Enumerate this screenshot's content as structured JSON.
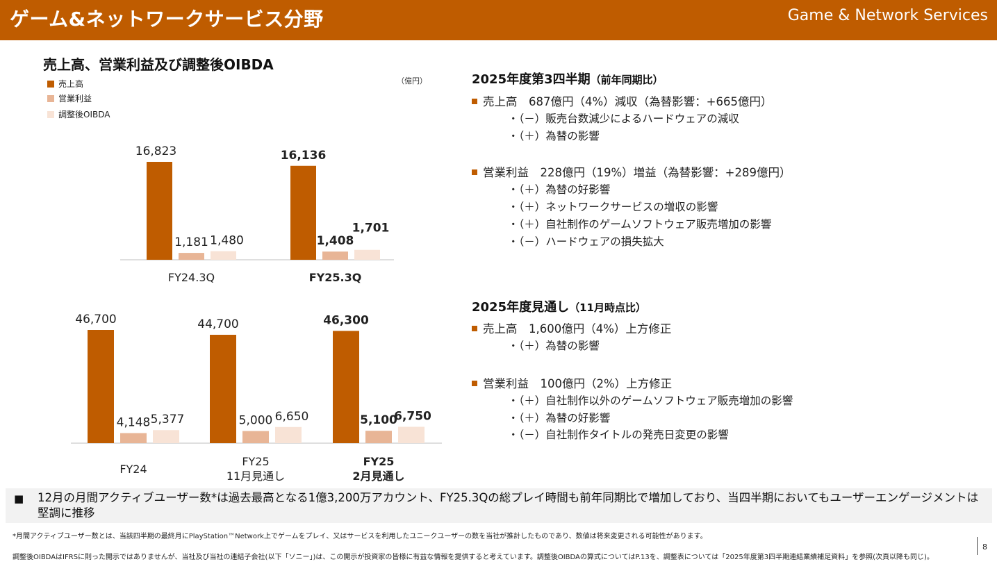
{
  "header": {
    "title": "ゲーム&ネットワークサービス分野",
    "title_en": "Game & Network Services"
  },
  "chart_section": {
    "title": "売上高、営業利益及び調整後OIBDA",
    "unit": "（億円）",
    "legend": [
      {
        "label": "売上高",
        "color": "#bf5c00"
      },
      {
        "label": "営業利益",
        "color": "#e8b596"
      },
      {
        "label": "調整後OIBDA",
        "color": "#f8e3d6"
      }
    ]
  },
  "chart_data": [
    {
      "type": "bar",
      "title": "売上高、営業利益及び調整後OIBDA",
      "unit": "億円",
      "categories": [
        "FY24.3Q",
        "FY25.3Q"
      ],
      "series": [
        {
          "name": "売上高",
          "values": [
            16823,
            16136
          ]
        },
        {
          "name": "営業利益",
          "values": [
            1181,
            1408
          ]
        },
        {
          "name": "調整後OIBDA",
          "values": [
            1480,
            1701
          ]
        }
      ],
      "data_labels": [
        [
          "16,823",
          "1,181",
          "1,480"
        ],
        [
          "16,136",
          "1,408",
          "1,701"
        ]
      ],
      "highlight_category": 1
    },
    {
      "type": "bar",
      "unit": "億円",
      "categories": [
        [
          "FY24"
        ],
        [
          "FY25",
          "11月見通し"
        ],
        [
          "FY25",
          "2月見通し"
        ]
      ],
      "series": [
        {
          "name": "売上高",
          "values": [
            46700,
            44700,
            46300
          ]
        },
        {
          "name": "営業利益",
          "values": [
            4148,
            5000,
            5100
          ]
        },
        {
          "name": "調整後OIBDA",
          "values": [
            5377,
            6650,
            6750
          ]
        }
      ],
      "data_labels": [
        [
          "46,700",
          "4,148",
          "5,377"
        ],
        [
          "44,700",
          "5,000",
          "6,650"
        ],
        [
          "46,300",
          "5,100",
          "6,750"
        ]
      ],
      "highlight_category": 2
    }
  ],
  "q3": {
    "title": "2025年度第3四半期",
    "title_sub": "（前年同期比）",
    "sales": "売上高　687億円（4%）減収（為替影響：+665億円）",
    "sales_items": [
      "・（－）販売台数減少によるハードウェアの減収",
      "・（＋）為替の影響"
    ],
    "op": "営業利益　228億円（19%）増益（為替影響：+289億円）",
    "op_items": [
      "・（＋）為替の好影響",
      "・（＋）ネットワークサービスの増収の影響",
      "・（＋）自社制作のゲームソフトウェア販売増加の影響",
      "・（－）ハードウェアの損失拡大"
    ]
  },
  "outlook": {
    "title": "2025年度見通し",
    "title_sub": "（11月時点比）",
    "sales": "売上高　1,600億円（4%）上方修正",
    "sales_items": [
      "・（＋）為替の影響"
    ],
    "op": "営業利益　100億円（2%）上方修正",
    "op_items": [
      "・（＋）自社制作以外のゲームソフトウェア販売増加の影響",
      "・（＋）為替の好影響",
      "・（－）自社制作タイトルの発売日変更の影響"
    ]
  },
  "banner": {
    "bullet": "■",
    "text": "12月の月間アクティブユーザー数*は過去最高となる1億3,200万アカウント、FY25.3Qの総プレイ時間も前年同期比で増加しており、当四半期においてもユーザーエンゲージメントは堅調に推移"
  },
  "footnotes": {
    "note1": "*月間アクティブユーザー数とは、当該四半期の最終月にPlayStation™Network上でゲームをプレイ、又はサービスを利用したユニークユーザーの数を当社が推計したものであり、数値は将来変更される可能性があります。",
    "note2": "調整後OIBDAはIFRSに則った開示ではありませんが、当社及び当社の連結子会社(以下「ソニー」)は、この開示が投資家の皆様に有益な情報を提供すると考えています。調整後OIBDAの算式についてはP.13を、調整表については「2025年度第3四半期連結業績補足資料」を参照(次頁以降も同じ)。"
  },
  "page_number": "8"
}
